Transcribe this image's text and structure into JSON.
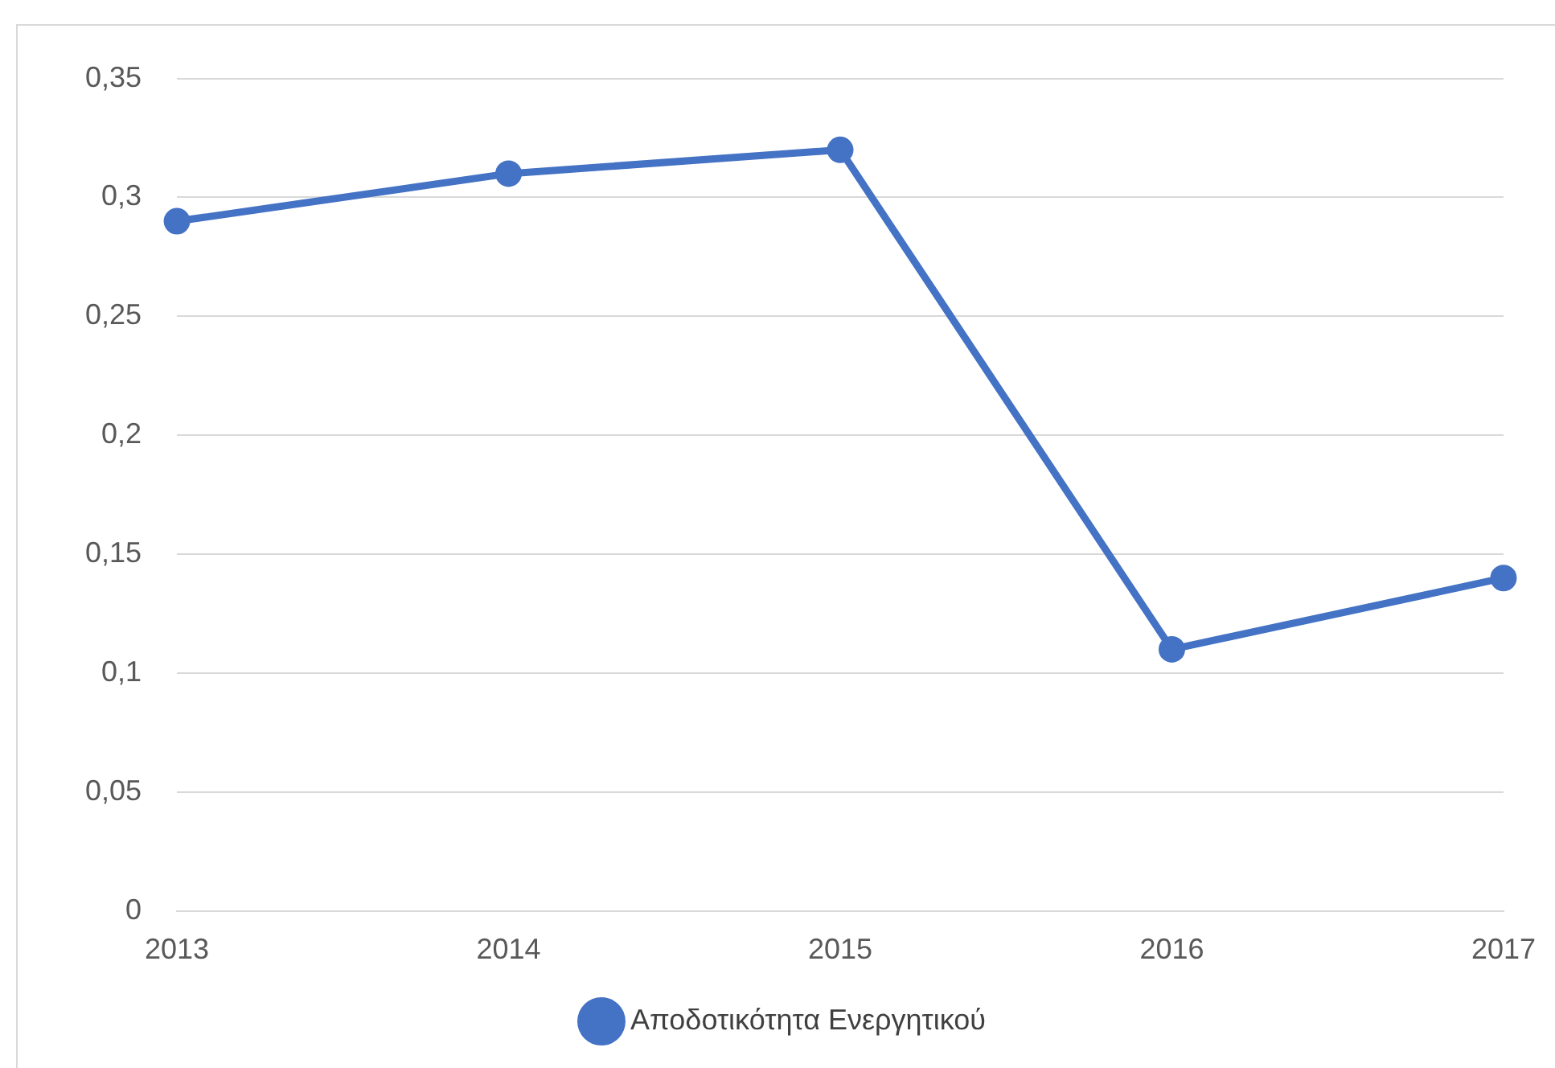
{
  "chart_data": {
    "type": "line",
    "categories": [
      "2013",
      "2014",
      "2015",
      "2016",
      "2017"
    ],
    "series": [
      {
        "name": "Αποδοτικότητα Ενεργητικού",
        "color": "#4472c4",
        "values": [
          0.29,
          0.31,
          0.32,
          0.11,
          0.14
        ]
      }
    ],
    "ylim": [
      0,
      0.35
    ],
    "yticks": [
      {
        "value": 0,
        "label": "0"
      },
      {
        "value": 0.05,
        "label": "0,05"
      },
      {
        "value": 0.1,
        "label": "0,1"
      },
      {
        "value": 0.15,
        "label": "0,15"
      },
      {
        "value": 0.2,
        "label": "0,2"
      },
      {
        "value": 0.25,
        "label": "0,25"
      },
      {
        "value": 0.3,
        "label": "0,3"
      },
      {
        "value": 0.35,
        "label": "0,35"
      }
    ],
    "grid": "y",
    "legend": "bottom",
    "marker": "circle",
    "line_style": "solid"
  }
}
